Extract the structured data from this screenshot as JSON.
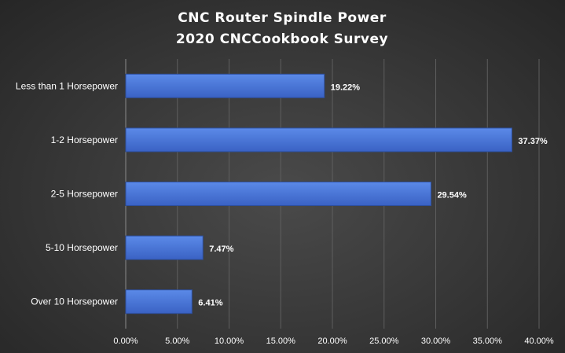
{
  "chart_data": {
    "type": "bar",
    "orientation": "horizontal",
    "title": "CNC Router Spindle Power",
    "subtitle": "2020 CNCCookbook Survey",
    "categories": [
      "Less than 1 Horsepower",
      "1-2 Horsepower",
      "2-5 Horsepower",
      "5-10 Horsepower",
      "Over 10 Horsepower"
    ],
    "values": [
      19.22,
      37.37,
      29.54,
      7.47,
      6.41
    ],
    "data_labels": [
      "19.22%",
      "37.37%",
      "29.54%",
      "7.47%",
      "6.41%"
    ],
    "x_ticks": [
      "0.00%",
      "5.00%",
      "10.00%",
      "15.00%",
      "20.00%",
      "25.00%",
      "30.00%",
      "35.00%",
      "40.00%"
    ],
    "xlim": [
      0,
      40
    ],
    "xlabel": "",
    "ylabel": "",
    "grid": true,
    "legend": false,
    "colors": {
      "bar_top": "#5b8ae8",
      "bar_bottom": "#3a62c4",
      "bar_stroke": "#2d4f9e",
      "background": "#404040",
      "text": "#ffffff"
    }
  }
}
